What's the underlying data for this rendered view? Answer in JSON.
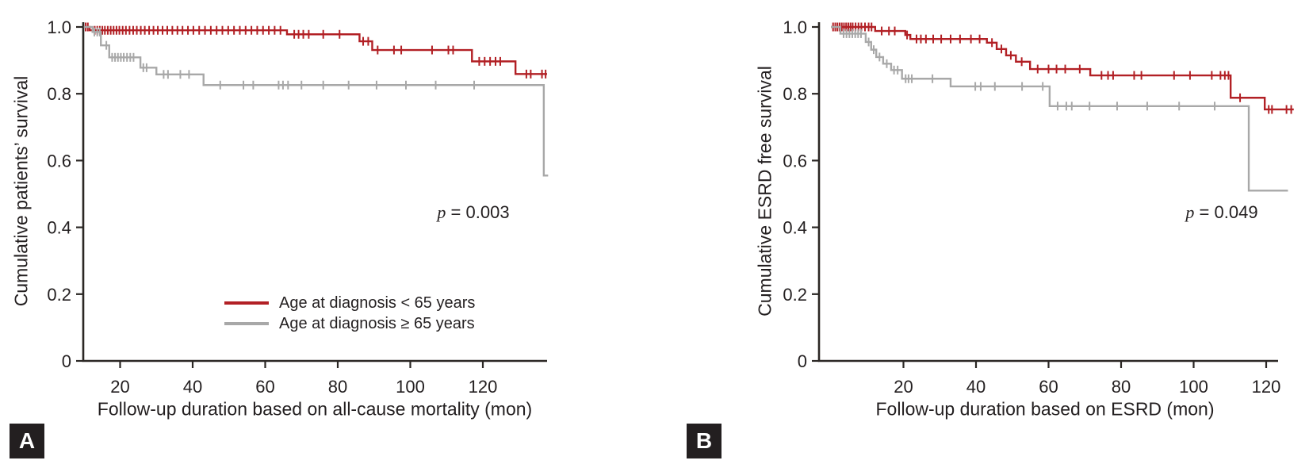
{
  "figure": {
    "badge_bg": "#231f20",
    "badge_fg": "#ffffff"
  },
  "chart_data": [
    {
      "type": "line",
      "subtype": "kaplan-meier-step",
      "panel": "A",
      "xlabel": "Follow-up duration based on all-cause mortality (mon)",
      "ylabel": "Cumulative patients’ survival",
      "annotation": {
        "p_symbol": "p",
        "p_value": "= 0.003"
      },
      "xlim": [
        10,
        138
      ],
      "ylim": [
        0,
        1.0
      ],
      "x_ticks": [
        20,
        40,
        60,
        80,
        100,
        120
      ],
      "y_ticks": [
        "1.0",
        "0.8",
        "0.6",
        "0.4",
        "0.2",
        "0"
      ],
      "grid": false,
      "legend_position": "lower-center-inside",
      "axis_color": "#2b2724",
      "series": [
        {
          "name": "Age at diagnosis < 65 years",
          "color": "#b22025",
          "steps": [
            [
              10,
              1.0
            ],
            [
              11.6,
              0.99
            ],
            [
              66,
              0.978
            ],
            [
              86,
              0.957
            ],
            [
              89.5,
              0.931
            ],
            [
              117,
              0.897
            ],
            [
              129,
              0.859
            ]
          ],
          "end": 137.7,
          "censors": [
            [
              10.5,
              1.0
            ],
            [
              11.1,
              1.0
            ],
            [
              13,
              0.99
            ],
            [
              13.7,
              0.99
            ],
            [
              14.4,
              0.99
            ],
            [
              15.1,
              0.99
            ],
            [
              15.8,
              0.99
            ],
            [
              16.6,
              0.99
            ],
            [
              17.4,
              0.99
            ],
            [
              18.2,
              0.99
            ],
            [
              19,
              0.99
            ],
            [
              19.8,
              0.99
            ],
            [
              20.7,
              0.99
            ],
            [
              21.6,
              0.99
            ],
            [
              22.6,
              0.99
            ],
            [
              23.6,
              0.99
            ],
            [
              24.6,
              0.99
            ],
            [
              25.7,
              0.99
            ],
            [
              26.8,
              0.99
            ],
            [
              28,
              0.99
            ],
            [
              29.2,
              0.99
            ],
            [
              30.4,
              0.99
            ],
            [
              31.7,
              0.99
            ],
            [
              33,
              0.99
            ],
            [
              34.4,
              0.99
            ],
            [
              35.8,
              0.99
            ],
            [
              37.2,
              0.99
            ],
            [
              38.7,
              0.99
            ],
            [
              40.2,
              0.99
            ],
            [
              41.8,
              0.99
            ],
            [
              43.4,
              0.99
            ],
            [
              45,
              0.99
            ],
            [
              46.6,
              0.99
            ],
            [
              48.2,
              0.99
            ],
            [
              49.8,
              0.99
            ],
            [
              51.4,
              0.99
            ],
            [
              53,
              0.99
            ],
            [
              54.6,
              0.99
            ],
            [
              56.2,
              0.99
            ],
            [
              57.8,
              0.99
            ],
            [
              59.4,
              0.99
            ],
            [
              61,
              0.99
            ],
            [
              62.6,
              0.99
            ],
            [
              64.2,
              0.99
            ],
            [
              68,
              0.978
            ],
            [
              69.2,
              0.978
            ],
            [
              70.5,
              0.978
            ],
            [
              72,
              0.978
            ],
            [
              76,
              0.978
            ],
            [
              80.5,
              0.978
            ],
            [
              87,
              0.957
            ],
            [
              88.4,
              0.957
            ],
            [
              91,
              0.931
            ],
            [
              95.5,
              0.931
            ],
            [
              97.5,
              0.931
            ],
            [
              106,
              0.931
            ],
            [
              110.5,
              0.931
            ],
            [
              111.8,
              0.931
            ],
            [
              119,
              0.897
            ],
            [
              120.5,
              0.897
            ],
            [
              122,
              0.897
            ],
            [
              123.5,
              0.897
            ],
            [
              124.8,
              0.897
            ],
            [
              132,
              0.859
            ],
            [
              133.2,
              0.859
            ],
            [
              136.3,
              0.859
            ],
            [
              137.3,
              0.859
            ]
          ]
        },
        {
          "name": "Age at diagnosis ≥ 65 years",
          "color": "#a8a8a8",
          "steps": [
            [
              10,
              1.0
            ],
            [
              12.4,
              0.985
            ],
            [
              14.7,
              0.945
            ],
            [
              17,
              0.909
            ],
            [
              25.6,
              0.878
            ],
            [
              30,
              0.858
            ],
            [
              43,
              0.826
            ],
            [
              136.8,
              0.555
            ]
          ],
          "end": 138,
          "censors": [
            [
              12.9,
              0.985
            ],
            [
              13.7,
              0.985
            ],
            [
              14.4,
              0.985
            ],
            [
              16.2,
              0.945
            ],
            [
              17.8,
              0.909
            ],
            [
              18.6,
              0.909
            ],
            [
              19.4,
              0.909
            ],
            [
              20.2,
              0.909
            ],
            [
              21,
              0.909
            ],
            [
              21.9,
              0.909
            ],
            [
              22.8,
              0.909
            ],
            [
              23.7,
              0.909
            ],
            [
              26.4,
              0.878
            ],
            [
              27.3,
              0.878
            ],
            [
              32,
              0.858
            ],
            [
              33.2,
              0.858
            ],
            [
              36.6,
              0.858
            ],
            [
              39,
              0.858
            ],
            [
              47.6,
              0.826
            ],
            [
              54,
              0.826
            ],
            [
              56.7,
              0.826
            ],
            [
              63.7,
              0.826
            ],
            [
              64.9,
              0.826
            ],
            [
              66.3,
              0.826
            ],
            [
              70,
              0.826
            ],
            [
              76,
              0.826
            ],
            [
              83,
              0.826
            ],
            [
              90.7,
              0.826
            ],
            [
              98.8,
              0.826
            ],
            [
              107,
              0.826
            ],
            [
              117.6,
              0.826
            ]
          ]
        }
      ]
    },
    {
      "type": "line",
      "subtype": "kaplan-meier-step",
      "panel": "B",
      "xlabel": "Follow-up duration based on ESRD (mon)",
      "ylabel": "Cumulative ESRD free survival",
      "annotation": {
        "p_symbol": "p",
        "p_value": "= 0.049"
      },
      "xlim": [
        0,
        128
      ],
      "ylim": [
        0,
        1.0
      ],
      "x_ticks": [
        20,
        40,
        60,
        80,
        100,
        120
      ],
      "y_ticks": [
        "1.0",
        "0.8",
        "0.6",
        "0.4",
        "0.2",
        "0"
      ],
      "grid": false,
      "legend_position": "none",
      "axis_color": "#2b2724",
      "series": [
        {
          "name": "Age at diagnosis < 65 years",
          "color": "#b22025",
          "steps": [
            [
              0,
              1.0
            ],
            [
              12.2,
              0.988
            ],
            [
              20.5,
              0.976
            ],
            [
              21.9,
              0.964
            ],
            [
              43,
              0.953
            ],
            [
              45.7,
              0.934
            ],
            [
              48.3,
              0.915
            ],
            [
              51,
              0.896
            ],
            [
              54.9,
              0.874
            ],
            [
              71.5,
              0.855
            ],
            [
              110.2,
              0.788
            ],
            [
              119.6,
              0.753
            ]
          ],
          "end": 127.6,
          "censors": [
            [
              0.6,
              1.0
            ],
            [
              1.2,
              1.0
            ],
            [
              1.8,
              1.0
            ],
            [
              2.4,
              1.0
            ],
            [
              3,
              1.0
            ],
            [
              3.6,
              1.0
            ],
            [
              4.2,
              1.0
            ],
            [
              4.8,
              1.0
            ],
            [
              5.4,
              1.0
            ],
            [
              6,
              1.0
            ],
            [
              6.8,
              1.0
            ],
            [
              7.6,
              1.0
            ],
            [
              8.4,
              1.0
            ],
            [
              9.4,
              1.0
            ],
            [
              10.4,
              1.0
            ],
            [
              11.2,
              1.0
            ],
            [
              14,
              0.988
            ],
            [
              16,
              0.988
            ],
            [
              17.6,
              0.988
            ],
            [
              21,
              0.976
            ],
            [
              23.6,
              0.964
            ],
            [
              24.8,
              0.964
            ],
            [
              26.2,
              0.964
            ],
            [
              28.2,
              0.964
            ],
            [
              30.4,
              0.964
            ],
            [
              33,
              0.964
            ],
            [
              35.6,
              0.964
            ],
            [
              38.6,
              0.964
            ],
            [
              41,
              0.964
            ],
            [
              44.4,
              0.953
            ],
            [
              47,
              0.934
            ],
            [
              49.6,
              0.915
            ],
            [
              52.6,
              0.896
            ],
            [
              57,
              0.874
            ],
            [
              60,
              0.874
            ],
            [
              62.2,
              0.874
            ],
            [
              64.6,
              0.874
            ],
            [
              68.6,
              0.874
            ],
            [
              74.6,
              0.855
            ],
            [
              76.4,
              0.855
            ],
            [
              77.8,
              0.855
            ],
            [
              83.6,
              0.855
            ],
            [
              85.6,
              0.855
            ],
            [
              94.6,
              0.855
            ],
            [
              99,
              0.855
            ],
            [
              105,
              0.855
            ],
            [
              107.4,
              0.855
            ],
            [
              108.6,
              0.855
            ],
            [
              109.6,
              0.855
            ],
            [
              112.8,
              0.788
            ],
            [
              120.7,
              0.753
            ],
            [
              121.6,
              0.753
            ],
            [
              125.6,
              0.753
            ],
            [
              126.9,
              0.753
            ]
          ]
        },
        {
          "name": "Age at diagnosis ≥ 65 years",
          "color": "#a8a8a8",
          "steps": [
            [
              0,
              1.0
            ],
            [
              2.6,
              0.98
            ],
            [
              9.6,
              0.955
            ],
            [
              11.1,
              0.932
            ],
            [
              12.5,
              0.91
            ],
            [
              14.4,
              0.89
            ],
            [
              16.6,
              0.871
            ],
            [
              19.6,
              0.845
            ],
            [
              33,
              0.822
            ],
            [
              60.3,
              0.763
            ],
            [
              115.2,
              0.51
            ]
          ],
          "end": 126,
          "censors": [
            [
              3.5,
              0.98
            ],
            [
              4.3,
              0.98
            ],
            [
              5.1,
              0.98
            ],
            [
              5.9,
              0.98
            ],
            [
              6.7,
              0.98
            ],
            [
              7.5,
              0.98
            ],
            [
              8.3,
              0.98
            ],
            [
              10.4,
              0.955
            ],
            [
              11.8,
              0.932
            ],
            [
              13.4,
              0.91
            ],
            [
              15.4,
              0.89
            ],
            [
              17.4,
              0.871
            ],
            [
              18.4,
              0.871
            ],
            [
              20.6,
              0.845
            ],
            [
              21.4,
              0.845
            ],
            [
              22.3,
              0.845
            ],
            [
              28,
              0.845
            ],
            [
              39.8,
              0.822
            ],
            [
              41.3,
              0.822
            ],
            [
              45.2,
              0.822
            ],
            [
              52.7,
              0.822
            ],
            [
              58.4,
              0.822
            ],
            [
              62.5,
              0.763
            ],
            [
              64.9,
              0.763
            ],
            [
              66.4,
              0.763
            ],
            [
              71.3,
              0.763
            ],
            [
              78.9,
              0.763
            ],
            [
              87.2,
              0.763
            ],
            [
              96,
              0.763
            ],
            [
              105.8,
              0.763
            ]
          ]
        }
      ]
    }
  ]
}
